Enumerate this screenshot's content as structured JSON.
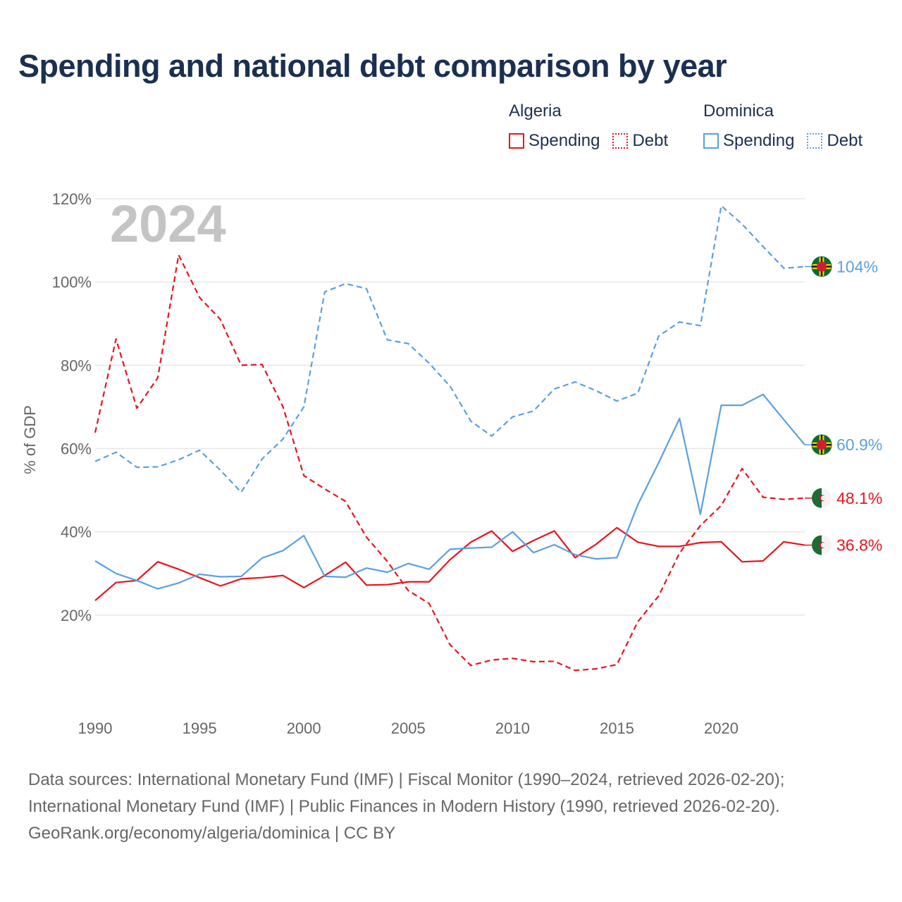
{
  "title": "Spending and national debt comparison by year",
  "legend": {
    "groups": [
      {
        "country": "Algeria",
        "color": "#e8141e",
        "items": [
          {
            "label": "Spending",
            "style": "solid"
          },
          {
            "label": "Debt",
            "style": "dotted"
          }
        ]
      },
      {
        "country": "Dominica",
        "color": "#5aa0e0",
        "items": [
          {
            "label": "Spending",
            "style": "solid"
          },
          {
            "label": "Debt",
            "style": "dotted"
          }
        ]
      }
    ]
  },
  "year_label": "2024",
  "footer": {
    "line1": "Data sources: International Monetary Fund (IMF) | Fiscal Monitor (1990–2024, retrieved 2026-02-20);",
    "line2": "International Monetary Fund (IMF) | Public Finances in Modern History (1990, retrieved 2026-02-20).",
    "line3": "GeoRank.org/economy/algeria/dominica | CC BY"
  },
  "chart_data": {
    "type": "line",
    "title": "Spending and national debt comparison by year",
    "xlabel": "",
    "ylabel": "% of GDP",
    "x": [
      1990,
      1991,
      1992,
      1993,
      1994,
      1995,
      1996,
      1997,
      1998,
      1999,
      2000,
      2001,
      2002,
      2003,
      2004,
      2005,
      2006,
      2007,
      2008,
      2009,
      2010,
      2011,
      2012,
      2013,
      2014,
      2015,
      2016,
      2017,
      2018,
      2019,
      2020,
      2021,
      2022,
      2023,
      2024
    ],
    "xlim": [
      1990,
      2024
    ],
    "ylim": [
      0,
      120
    ],
    "yticks": [
      20,
      40,
      60,
      80,
      100,
      120
    ],
    "ytick_labels": [
      "20%",
      "40%",
      "60%",
      "80%",
      "100%",
      "120%"
    ],
    "xticks": [
      1990,
      1995,
      2000,
      2005,
      2010,
      2015,
      2020
    ],
    "xtick_labels": [
      "1990",
      "1995",
      "2000",
      "2005",
      "2010",
      "2015",
      "2020"
    ],
    "grid": true,
    "series": [
      {
        "name": "Algeria Spending",
        "country": "Algeria",
        "color": "#e8141e",
        "dash": "solid",
        "end_label": "36.8%",
        "values": [
          23.5,
          27.8,
          28.3,
          32.8,
          31.0,
          29.0,
          27.0,
          28.7,
          29.0,
          29.5,
          26.6,
          29.5,
          32.7,
          27.2,
          27.3,
          28.0,
          28.0,
          33.3,
          37.5,
          40.2,
          35.3,
          37.9,
          40.2,
          33.8,
          37.0,
          41.0,
          37.5,
          36.5,
          36.5,
          37.4,
          37.6,
          32.8,
          33.0,
          37.6,
          36.8
        ]
      },
      {
        "name": "Algeria Debt",
        "country": "Algeria",
        "color": "#e8141e",
        "dash": "dashed",
        "end_label": "48.1%",
        "values": [
          63.8,
          86.3,
          69.7,
          77.0,
          106.5,
          96.3,
          91.0,
          80.0,
          80.2,
          70.0,
          53.5,
          50.3,
          47.3,
          38.7,
          32.9,
          25.9,
          22.8,
          12.9,
          7.9,
          9.2,
          9.6,
          8.8,
          8.9,
          6.7,
          7.1,
          8.1,
          18.4,
          24.6,
          34.9,
          41.5,
          46.3,
          55.2,
          48.3,
          47.8,
          48.1
        ]
      },
      {
        "name": "Dominica Spending",
        "country": "Dominica",
        "color": "#5aa0e0",
        "dash": "solid",
        "end_label": "60.9%",
        "values": [
          33.0,
          30.0,
          28.3,
          26.3,
          27.7,
          29.8,
          29.2,
          29.3,
          33.7,
          35.5,
          39.1,
          29.3,
          29.1,
          31.3,
          30.3,
          32.4,
          31.0,
          35.8,
          36.1,
          36.3,
          40.0,
          35.0,
          36.9,
          34.5,
          33.5,
          33.8,
          46.5,
          56.6,
          67.2,
          44.2,
          70.4,
          70.4,
          73.0,
          66.9,
          60.9
        ]
      },
      {
        "name": "Dominica Debt",
        "country": "Dominica",
        "color": "#5aa0e0",
        "dash": "dashed",
        "end_label": "104%",
        "values": [
          56.9,
          59.1,
          55.5,
          55.6,
          57.3,
          59.6,
          54.8,
          49.5,
          57.5,
          62.3,
          70.0,
          97.6,
          99.6,
          98.4,
          86.1,
          85.2,
          80.5,
          75.0,
          66.6,
          63.0,
          67.6,
          69.0,
          74.3,
          76.0,
          73.9,
          71.4,
          73.3,
          87.0,
          90.4,
          89.5,
          118.3,
          113.9,
          108.5,
          103.3,
          103.7
        ]
      }
    ]
  }
}
